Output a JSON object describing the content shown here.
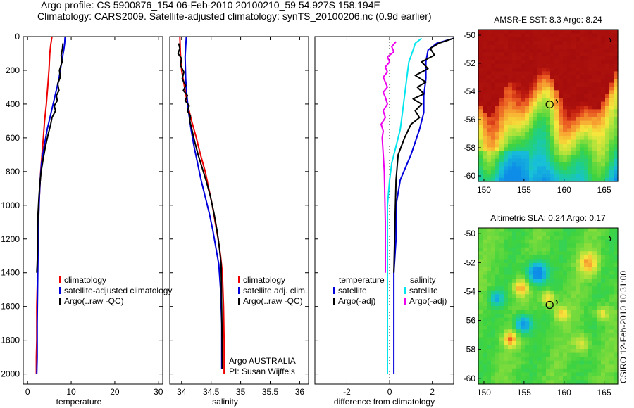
{
  "header": {
    "line1": "Argo profile: CS 5900876_154 06-Feb-2010 20100210_59 54.927S 158.194E",
    "line2": "Climatology: CARS2009. Satellite-adjusted climatology: synTS_20100206.nc (0.9d earlier)"
  },
  "colors": {
    "climatology": "#ee0000",
    "satellite": "#0000dd",
    "argo": "#000000",
    "salinity_satellite": "#00e5ee",
    "salinity_argo": "#ee00ee"
  },
  "chart_data": [
    {
      "type": "line",
      "xlabel": "temperature",
      "ylabel": "",
      "xlim": [
        -1,
        31
      ],
      "ylim": [
        2060,
        0
      ],
      "xticks": [
        0,
        10,
        20,
        30
      ],
      "yticks": [
        0,
        200,
        400,
        600,
        800,
        1000,
        1200,
        1400,
        1600,
        1800,
        2000
      ],
      "legend": [
        "climatology",
        "satellite-adjusted climatology",
        "Argo(..raw -QC)"
      ],
      "series": [
        {
          "name": "climatology",
          "color": "#ee0000",
          "x": [
            5.6,
            5.3,
            5.1,
            4.9,
            4.6,
            4.3,
            3.9,
            3.6,
            3.3,
            3.0,
            2.8,
            2.6,
            2.4,
            2.3,
            2.2,
            2.1,
            2.1,
            2.0,
            2.0
          ],
          "y": [
            0,
            50,
            100,
            200,
            300,
            400,
            500,
            600,
            700,
            800,
            900,
            1000,
            1200,
            1400,
            1500,
            1600,
            1800,
            1900,
            2000
          ]
        },
        {
          "name": "satellite-adjusted climatology",
          "color": "#0000dd",
          "x": [
            8.6,
            8.5,
            8.3,
            7.8,
            7.2,
            6.3,
            5.4,
            4.5,
            3.8,
            3.2,
            2.9,
            2.7,
            2.5,
            2.4,
            2.3,
            2.2,
            2.2,
            2.1
          ],
          "y": [
            0,
            40,
            80,
            150,
            250,
            350,
            450,
            550,
            650,
            750,
            850,
            950,
            1100,
            1300,
            1500,
            1700,
            1900,
            2000
          ]
        },
        {
          "name": "Argo(..raw -QC)",
          "color": "#000000",
          "x": [
            8.1,
            8.0,
            7.7,
            7.9,
            7.3,
            7.5,
            6.9,
            7.2,
            6.6,
            6.8,
            6.1,
            6.4,
            5.6,
            5.3,
            4.7,
            4.1,
            3.6,
            3.1,
            2.8,
            2.6,
            2.4,
            2.3,
            2.3,
            2.2,
            2.1
          ],
          "y": [
            40,
            70,
            110,
            150,
            200,
            240,
            280,
            320,
            350,
            380,
            410,
            440,
            480,
            520,
            580,
            650,
            720,
            800,
            880,
            950,
            1050,
            1150,
            1250,
            1350,
            1400
          ]
        }
      ]
    },
    {
      "type": "line",
      "xlabel": "salinity",
      "ylabel": "",
      "xlim": [
        33.8,
        36.15
      ],
      "ylim": [
        2060,
        0
      ],
      "xticks": [
        34,
        34.5,
        35,
        35.5,
        36
      ],
      "xticklabels": [
        "34",
        "34.5",
        "35",
        "35.5",
        "36"
      ],
      "legend": [
        "climatology",
        "satellite adj. clim.",
        "Argo(..raw -QC)"
      ],
      "annotations": [
        "Argo AUSTRALIA",
        "PI: Susan Wijffels"
      ],
      "series": [
        {
          "name": "climatology",
          "color": "#ee0000",
          "x": [
            33.97,
            33.98,
            34.0,
            34.05,
            34.1,
            34.17,
            34.25,
            34.32,
            34.4,
            34.46,
            34.52,
            34.57,
            34.62,
            34.66,
            34.69,
            34.71,
            34.72,
            34.72
          ],
          "y": [
            0,
            100,
            200,
            300,
            400,
            500,
            600,
            700,
            800,
            900,
            1000,
            1100,
            1200,
            1300,
            1400,
            1600,
            1800,
            2000
          ]
        },
        {
          "name": "satellite adj. clim.",
          "color": "#0000dd",
          "x": [
            34.08,
            34.07,
            34.06,
            34.07,
            34.09,
            34.12,
            34.16,
            34.21,
            34.27,
            34.33,
            34.4,
            34.47,
            34.53,
            34.58,
            34.63,
            34.66,
            34.68,
            34.68
          ],
          "y": [
            0,
            60,
            120,
            250,
            350,
            450,
            550,
            650,
            750,
            850,
            950,
            1050,
            1150,
            1250,
            1350,
            1500,
            1700,
            1970
          ]
        },
        {
          "name": "Argo(..raw -QC)",
          "color": "#000000",
          "x": [
            33.95,
            33.97,
            33.94,
            34.0,
            33.98,
            34.04,
            34.01,
            34.07,
            34.03,
            34.1,
            34.06,
            34.13,
            34.1,
            34.15,
            34.14,
            34.18,
            34.22,
            34.28,
            34.35,
            34.42,
            34.49,
            34.55,
            34.6,
            34.64,
            34.67,
            34.68,
            34.69
          ],
          "y": [
            40,
            70,
            100,
            130,
            170,
            210,
            250,
            290,
            320,
            350,
            380,
            410,
            440,
            470,
            500,
            560,
            620,
            700,
            780,
            860,
            950,
            1050,
            1150,
            1250,
            1350,
            1650,
            1970
          ]
        }
      ]
    },
    {
      "type": "line",
      "xlabel": "difference from climatology",
      "ylabel": "",
      "xlim": [
        -3.5,
        3.0
      ],
      "ylim": [
        2060,
        0
      ],
      "xticks": [
        -2,
        0,
        2
      ],
      "legend_left_title": "temperature",
      "legend_right_title": "salinity",
      "legend": [
        "satellite",
        "Argo(-adj)",
        "satellite",
        "Argo(-adj)"
      ],
      "series": [
        {
          "name": "temperature satellite",
          "color": "#0000dd",
          "x": [
            3.0,
            2.2,
            1.8,
            1.7,
            1.7,
            1.6,
            1.6,
            1.4,
            1.0,
            0.5,
            0.3,
            0.3,
            0.2,
            0.2,
            0.2,
            0.2
          ],
          "y": [
            10,
            40,
            80,
            150,
            250,
            350,
            450,
            550,
            700,
            850,
            1000,
            1200,
            1400,
            1600,
            1800,
            2000
          ]
        },
        {
          "name": "temperature Argo(-adj)",
          "color": "#000000",
          "x": [
            3.0,
            2.3,
            1.9,
            2.1,
            1.5,
            1.8,
            1.2,
            1.7,
            1.3,
            1.6,
            1.1,
            1.5,
            1.2,
            1.4,
            1.0,
            0.7,
            0.4,
            0.3,
            0.25,
            0.2
          ],
          "y": [
            10,
            40,
            70,
            110,
            150,
            190,
            230,
            270,
            300,
            340,
            370,
            400,
            440,
            480,
            520,
            600,
            700,
            850,
            1100,
            1400
          ]
        },
        {
          "name": "salinity satellite",
          "color": "#00e5ee",
          "x": [
            1.5,
            1.2,
            1.1,
            0.9,
            0.8,
            0.7,
            0.6,
            0.5,
            0.3,
            0.1,
            0.0,
            -0.1,
            -0.1,
            -0.1,
            -0.1,
            -0.1,
            -0.1
          ],
          "y": [
            10,
            40,
            80,
            150,
            250,
            350,
            450,
            550,
            650,
            750,
            850,
            1000,
            1200,
            1400,
            1600,
            1800,
            2000
          ]
        },
        {
          "name": "salinity Argo(-adj)",
          "color": "#ee00ee",
          "x": [
            0.3,
            0.1,
            0.2,
            -0.1,
            0.0,
            -0.2,
            -0.1,
            -0.3,
            -0.2,
            -0.1,
            -0.3,
            -0.2,
            -0.1,
            -0.3,
            -0.2,
            -0.4,
            -0.3,
            -0.35,
            -0.25,
            -0.2,
            -0.2
          ],
          "y": [
            30,
            60,
            90,
            120,
            150,
            180,
            210,
            240,
            270,
            300,
            330,
            360,
            400,
            440,
            480,
            520,
            560,
            600,
            800,
            1100,
            1400
          ]
        }
      ]
    },
    {
      "type": "heatmap",
      "title": "AMSR-E SST: 8.3 Argo: 8.24",
      "xticks": [
        150,
        155,
        160,
        165
      ],
      "yticks": [
        -50,
        -52,
        -54,
        -56,
        -58,
        -60
      ],
      "xlim": [
        149.3,
        166.7
      ],
      "ylim": [
        -60.4,
        -49.6
      ],
      "marker": {
        "lon": 158.194,
        "lat": -54.927
      }
    },
    {
      "type": "heatmap",
      "title": "Altimetric SLA: 0.24 Argo: 0.17",
      "xticks": [
        150,
        155,
        160,
        165
      ],
      "yticks": [
        -50,
        -52,
        -54,
        -56,
        -58,
        -60
      ],
      "xlim": [
        149.3,
        166.7
      ],
      "ylim": [
        -60.4,
        -49.6
      ],
      "marker": {
        "lon": 158.194,
        "lat": -54.927
      },
      "side_label": "CSIRO 12-Feb-2010 10:31:00"
    }
  ]
}
